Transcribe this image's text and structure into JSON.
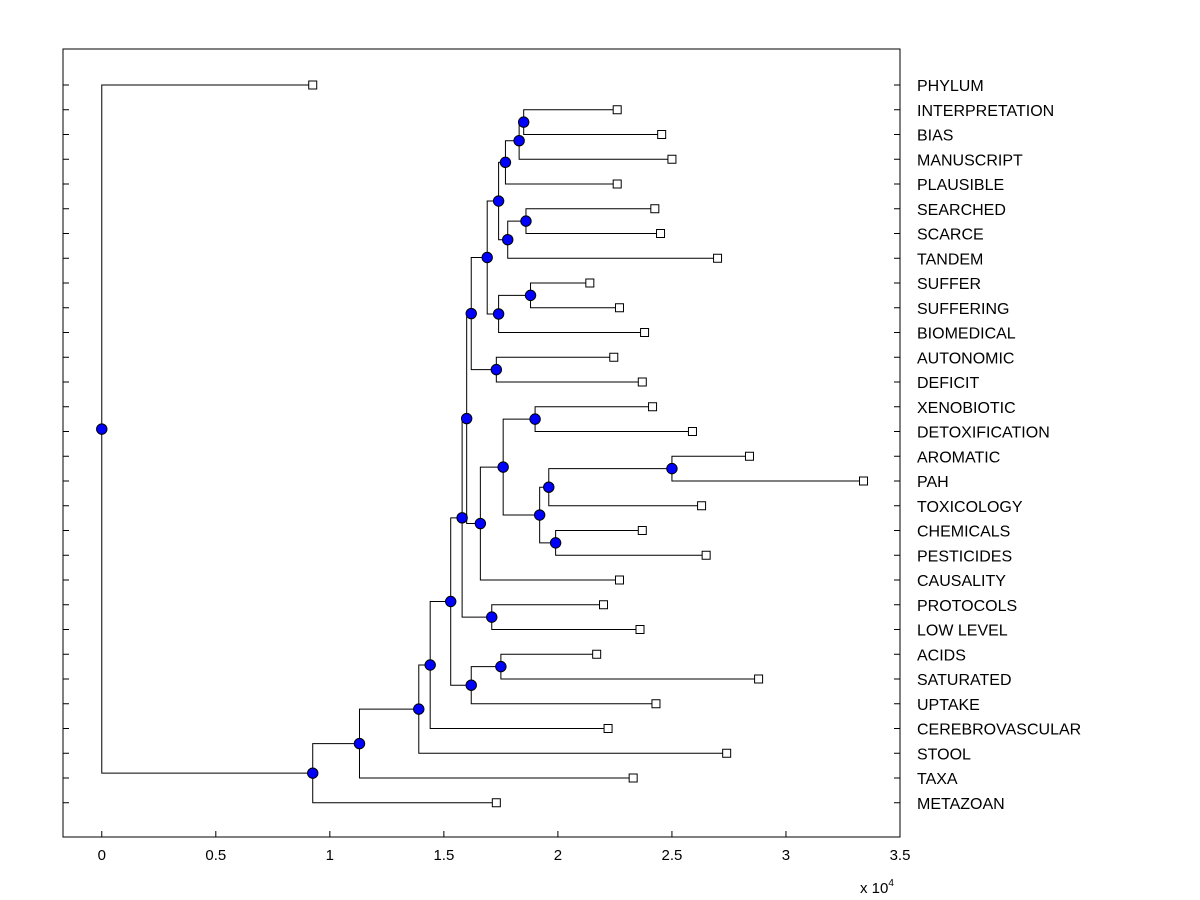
{
  "chart_data": {
    "type": "dendrogram",
    "title": "",
    "xlabel": "",
    "ylabel": "",
    "x_multiplier_label": "x 10",
    "x_multiplier_exponent": "4",
    "xlim": [
      -0.17,
      3.5
    ],
    "xticks": [
      0,
      0.5,
      1,
      1.5,
      2,
      2.5,
      3,
      3.5
    ],
    "xtick_labels": [
      "0",
      "0.5",
      "1",
      "1.5",
      "2",
      "2.5",
      "3",
      "3.5"
    ],
    "grid": false,
    "colors": {
      "node_fill": "#0000ff",
      "line": "#000000",
      "leaf_fill": "#ffffff"
    },
    "leaves": [
      {
        "label": "PHYLUM",
        "x": 0.925
      },
      {
        "label": "INTERPRETATION",
        "x": 2.26
      },
      {
        "label": "BIAS",
        "x": 2.455
      },
      {
        "label": "MANUSCRIPT",
        "x": 2.5
      },
      {
        "label": "PLAUSIBLE",
        "x": 2.26
      },
      {
        "label": "SEARCHED",
        "x": 2.425
      },
      {
        "label": "SCARCE",
        "x": 2.45
      },
      {
        "label": "TANDEM",
        "x": 2.7
      },
      {
        "label": "SUFFER",
        "x": 2.14
      },
      {
        "label": "SUFFERING",
        "x": 2.27
      },
      {
        "label": "BIOMEDICAL",
        "x": 2.38
      },
      {
        "label": "AUTONOMIC",
        "x": 2.245
      },
      {
        "label": "DEFICIT",
        "x": 2.37
      },
      {
        "label": "XENOBIOTIC",
        "x": 2.415
      },
      {
        "label": "DETOXIFICATION",
        "x": 2.59
      },
      {
        "label": "AROMATIC",
        "x": 2.84
      },
      {
        "label": "PAH",
        "x": 3.34
      },
      {
        "label": "TOXICOLOGY",
        "x": 2.63
      },
      {
        "label": "CHEMICALS",
        "x": 2.37
      },
      {
        "label": "PESTICIDES",
        "x": 2.65
      },
      {
        "label": "CAUSALITY",
        "x": 2.27
      },
      {
        "label": "PROTOCOLS",
        "x": 2.2
      },
      {
        "label": "LOW LEVEL",
        "x": 2.36
      },
      {
        "label": "ACIDS",
        "x": 2.17
      },
      {
        "label": "SATURATED",
        "x": 2.88
      },
      {
        "label": "UPTAKE",
        "x": 2.43
      },
      {
        "label": "CEREBROVASCULAR",
        "x": 2.22
      },
      {
        "label": "STOOL",
        "x": 2.74
      },
      {
        "label": "TAXA",
        "x": 2.33
      },
      {
        "label": "METAZOAN",
        "x": 1.73
      }
    ],
    "merges": [
      {
        "id": "m1",
        "x": 1.85,
        "children": [
          "INTERPRETATION",
          "BIAS"
        ]
      },
      {
        "id": "m2",
        "x": 1.83,
        "children": [
          "m1",
          "MANUSCRIPT"
        ]
      },
      {
        "id": "m3",
        "x": 1.77,
        "children": [
          "m2",
          "PLAUSIBLE"
        ]
      },
      {
        "id": "m4",
        "x": 1.86,
        "children": [
          "SEARCHED",
          "SCARCE"
        ]
      },
      {
        "id": "m5",
        "x": 1.78,
        "children": [
          "m4",
          "TANDEM"
        ]
      },
      {
        "id": "m6",
        "x": 1.74,
        "children": [
          "m3",
          "m5"
        ]
      },
      {
        "id": "m7",
        "x": 1.88,
        "children": [
          "SUFFER",
          "SUFFERING"
        ]
      },
      {
        "id": "m8",
        "x": 1.74,
        "children": [
          "m7",
          "BIOMEDICAL"
        ]
      },
      {
        "id": "m9",
        "x": 1.69,
        "children": [
          "m6",
          "m8"
        ]
      },
      {
        "id": "m10",
        "x": 1.73,
        "children": [
          "AUTONOMIC",
          "DEFICIT"
        ]
      },
      {
        "id": "m11",
        "x": 1.62,
        "children": [
          "m9",
          "m10"
        ]
      },
      {
        "id": "m12",
        "x": 1.9,
        "children": [
          "XENOBIOTIC",
          "DETOXIFICATION"
        ]
      },
      {
        "id": "m13",
        "x": 2.5,
        "children": [
          "AROMATIC",
          "PAH"
        ]
      },
      {
        "id": "m14",
        "x": 1.96,
        "children": [
          "m13",
          "TOXICOLOGY"
        ]
      },
      {
        "id": "m15",
        "x": 1.99,
        "children": [
          "CHEMICALS",
          "PESTICIDES"
        ]
      },
      {
        "id": "m16",
        "x": 1.92,
        "children": [
          "m14",
          "m15"
        ]
      },
      {
        "id": "m17",
        "x": 1.76,
        "children": [
          "m12",
          "m16"
        ]
      },
      {
        "id": "m18",
        "x": 1.66,
        "children": [
          "m17",
          "CAUSALITY"
        ]
      },
      {
        "id": "m19",
        "x": 1.6,
        "children": [
          "m11",
          "m18"
        ]
      },
      {
        "id": "m20",
        "x": 1.71,
        "children": [
          "PROTOCOLS",
          "LOW LEVEL"
        ]
      },
      {
        "id": "m21",
        "x": 1.58,
        "children": [
          "m19",
          "m20"
        ]
      },
      {
        "id": "m22",
        "x": 1.75,
        "children": [
          "ACIDS",
          "SATURATED"
        ]
      },
      {
        "id": "m23",
        "x": 1.62,
        "children": [
          "m22",
          "UPTAKE"
        ]
      },
      {
        "id": "m24",
        "x": 1.53,
        "children": [
          "m21",
          "m23"
        ]
      },
      {
        "id": "m25",
        "x": 1.44,
        "children": [
          "m24",
          "CEREBROVASCULAR"
        ]
      },
      {
        "id": "m26",
        "x": 1.39,
        "children": [
          "m25",
          "STOOL"
        ]
      },
      {
        "id": "m27",
        "x": 1.13,
        "children": [
          "m26",
          "TAXA"
        ]
      },
      {
        "id": "m28",
        "x": 0.925,
        "children": [
          "m27",
          "METAZOAN"
        ]
      },
      {
        "id": "m29",
        "x": 0.0,
        "children": [
          "PHYLUM",
          "m28"
        ]
      }
    ]
  }
}
